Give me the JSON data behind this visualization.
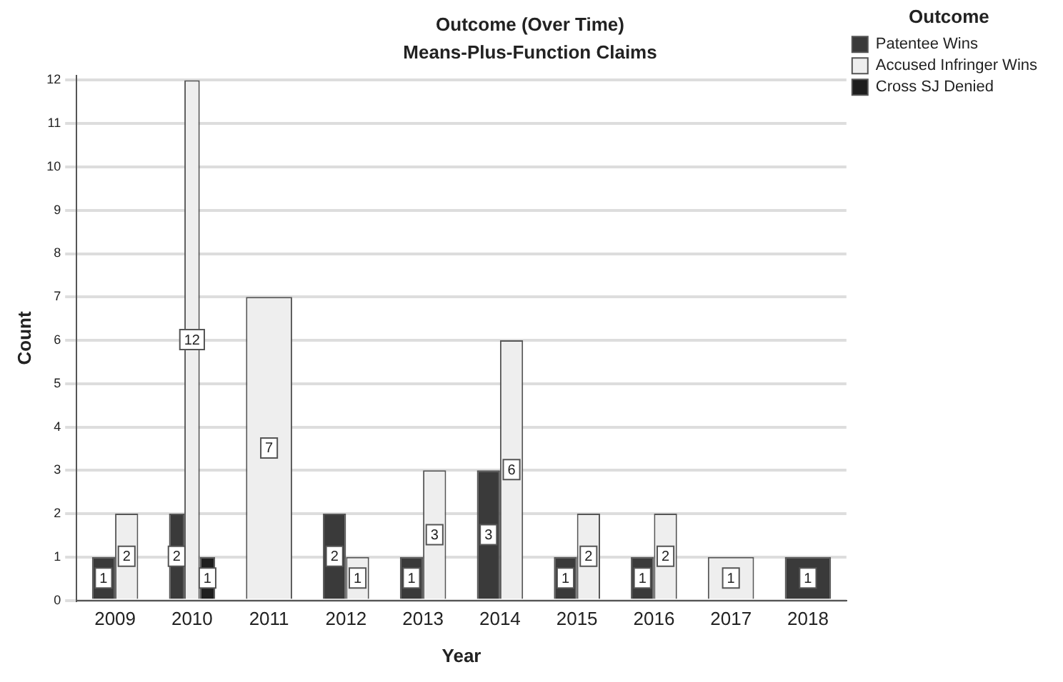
{
  "chart_data": {
    "type": "bar",
    "title": "Outcome (Over Time)",
    "subtitle": "Means-Plus-Function Claims",
    "xlabel": "Year",
    "ylabel": "Count",
    "legend_title": "Outcome",
    "categories": [
      "2009",
      "2010",
      "2011",
      "2012",
      "2013",
      "2014",
      "2015",
      "2016",
      "2017",
      "2018"
    ],
    "series": [
      {
        "name": "Patentee Wins",
        "color": "#3a3a3a",
        "values": [
          1,
          2,
          null,
          2,
          1,
          3,
          1,
          1,
          null,
          1
        ]
      },
      {
        "name": "Accused Infringer Wins",
        "color": "#eeeeee",
        "values": [
          2,
          12,
          7,
          1,
          3,
          6,
          2,
          2,
          1,
          null
        ]
      },
      {
        "name": "Cross SJ Denied",
        "color": "#1e1e1e",
        "values": [
          null,
          1,
          null,
          null,
          null,
          null,
          null,
          null,
          null,
          null
        ]
      }
    ],
    "ylim": [
      0,
      12.1
    ],
    "yticks": [
      0,
      1,
      2,
      3,
      4,
      5,
      6,
      7,
      8,
      9,
      10,
      11,
      12
    ],
    "grid": "y",
    "legend": "top right",
    "data_labels": true
  }
}
